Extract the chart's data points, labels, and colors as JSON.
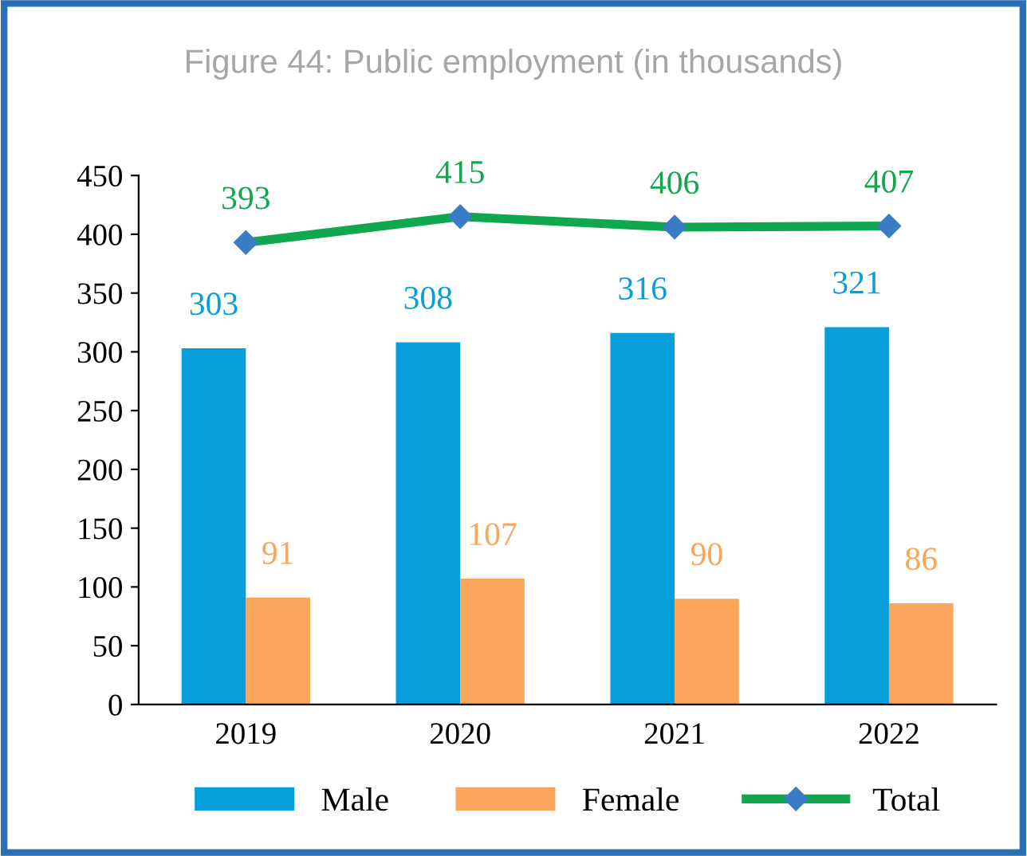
{
  "chart_data": {
    "type": "bar",
    "title": "Figure 44: Public employment (in thousands)",
    "categories": [
      "2019",
      "2020",
      "2021",
      "2022"
    ],
    "series": [
      {
        "name": "Male",
        "color": "#069fdc",
        "values": [
          303,
          308,
          316,
          321
        ]
      },
      {
        "name": "Female",
        "color": "#f9a65a",
        "values": [
          91,
          107,
          90,
          86
        ]
      },
      {
        "name": "Total",
        "type": "line",
        "color": "#10a84e",
        "values": [
          393,
          415,
          406,
          407
        ],
        "marker": "diamond"
      }
    ],
    "ylim": [
      0,
      450
    ],
    "yticks": [
      0,
      50,
      100,
      150,
      200,
      250,
      300,
      350,
      400,
      450
    ],
    "data_labels": true,
    "legend": "bottom",
    "grid": false
  }
}
